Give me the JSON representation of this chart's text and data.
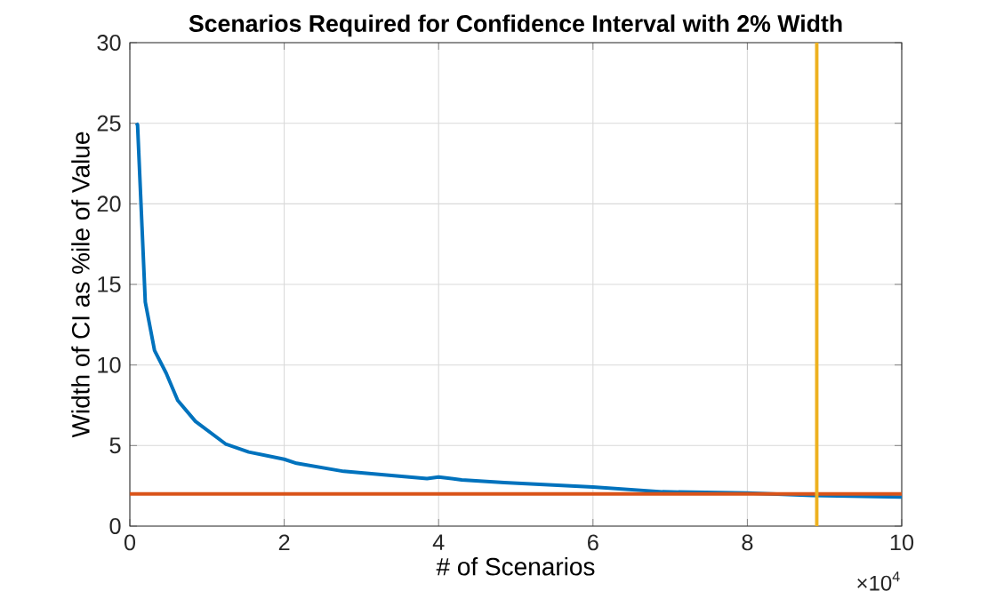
{
  "chart_data": {
    "type": "line",
    "title": "Scenarios Required for Confidence Interval with 2% Width",
    "xlabel": "# of Scenarios",
    "ylabel": "Width of CI as %ile of Value",
    "annotations": [
      "×10$^{4}$"
    ],
    "xlim": [
      0,
      10
    ],
    "xticks": [
      0,
      2,
      4,
      6,
      8,
      10
    ],
    "ylim": [
      0,
      30
    ],
    "yticks": [
      0,
      5,
      10,
      15,
      20,
      25,
      30
    ],
    "grid": true,
    "series": [
      {
        "color": "#0072bd",
        "x": [
          0.085,
          0.1,
          0.2,
          0.32,
          0.47,
          0.62,
          0.85,
          1.24,
          1.54,
          2.0,
          2.16,
          2.77,
          3.39,
          3.85,
          4.0,
          4.3,
          4.85,
          6.0,
          6.9,
          8.0,
          8.84,
          10
        ],
        "values": [
          25,
          24.9,
          13.9,
          10.9,
          9.5,
          7.8,
          6.5,
          5.1,
          4.6,
          4.15,
          3.9,
          3.4,
          3.15,
          2.95,
          3.05,
          2.87,
          2.7,
          2.43,
          2.13,
          2.06,
          1.9,
          1.8
        ]
      }
    ],
    "ref_lines": [
      {
        "axis": "y",
        "value": 2,
        "color": "#d95319"
      },
      {
        "axis": "x",
        "value": 8.9,
        "color": "#edb120"
      }
    ]
  }
}
